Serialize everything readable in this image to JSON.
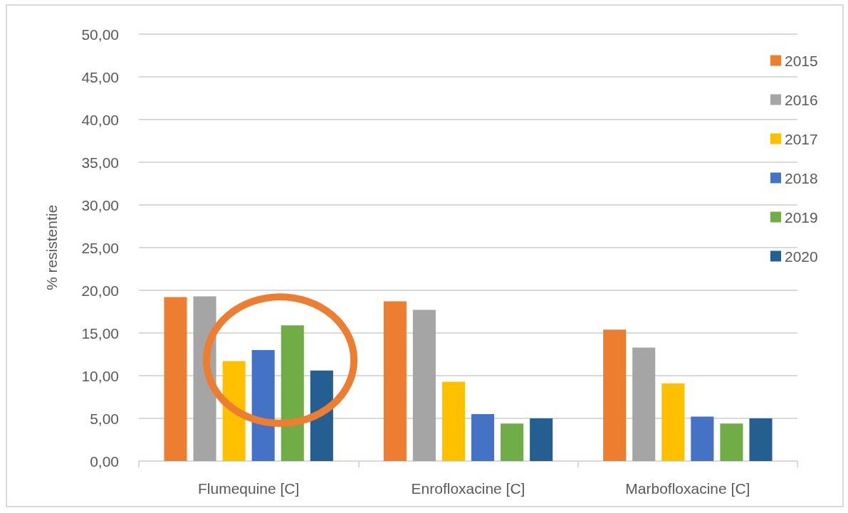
{
  "chart_data": {
    "type": "bar",
    "ylabel": "% resistentie",
    "categories": [
      "Flumequine [C]",
      "Enrofloxacine [C]",
      "Marbofloxacine [C]"
    ],
    "series": [
      {
        "name": "2015",
        "color": "#ed7d31",
        "values": [
          19.2,
          18.7,
          15.4
        ]
      },
      {
        "name": "2016",
        "color": "#a5a5a5",
        "values": [
          19.3,
          17.7,
          13.3
        ]
      },
      {
        "name": "2017",
        "color": "#ffc000",
        "values": [
          11.7,
          9.3,
          9.1
        ]
      },
      {
        "name": "2018",
        "color": "#4472c4",
        "values": [
          13.0,
          5.5,
          5.2
        ]
      },
      {
        "name": "2019",
        "color": "#70ad47",
        "values": [
          15.9,
          4.4,
          4.4
        ]
      },
      {
        "name": "2020",
        "color": "#255e91",
        "values": [
          10.6,
          5.0,
          5.0
        ]
      }
    ],
    "ylim": [
      0,
      50
    ],
    "yticks": [
      {
        "value": 0,
        "label": "0,00"
      },
      {
        "value": 5,
        "label": "5,00"
      },
      {
        "value": 10,
        "label": "10,00"
      },
      {
        "value": 15,
        "label": "15,00"
      },
      {
        "value": 20,
        "label": "20,00"
      },
      {
        "value": 25,
        "label": "25,00"
      },
      {
        "value": 30,
        "label": "30,00"
      },
      {
        "value": 35,
        "label": "35,00"
      },
      {
        "value": 40,
        "label": "40,00"
      },
      {
        "value": 45,
        "label": "45,00"
      },
      {
        "value": 50,
        "label": "50,00"
      }
    ],
    "grid": "y",
    "legend": "right"
  }
}
